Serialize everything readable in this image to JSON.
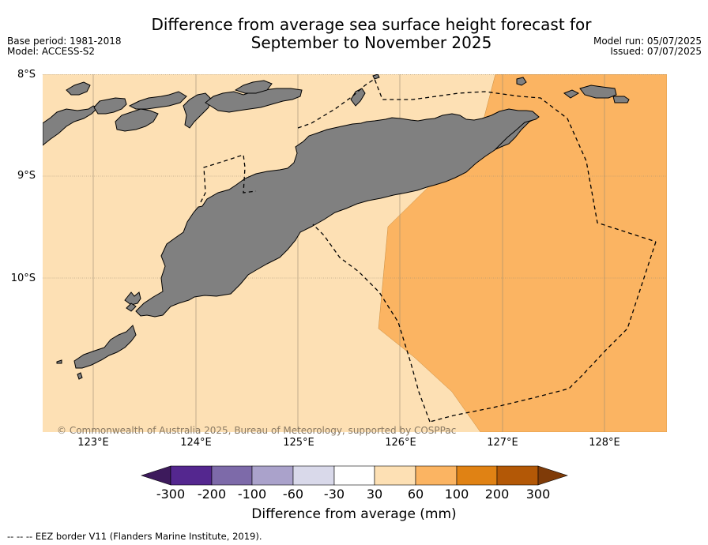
{
  "title": {
    "line1": "Difference from average sea surface height forecast for",
    "line2": "September to November 2025"
  },
  "meta": {
    "base_period": "Base period: 1981-2018",
    "model": "Model: ACCESS-S2",
    "model_run": "Model run: 05/07/2025",
    "issued": "Issued: 07/07/2025"
  },
  "axes": {
    "lat_labels": [
      "8°S",
      "9°S",
      "10°S"
    ],
    "lon_labels": [
      "123°E",
      "124°E",
      "125°E",
      "126°E",
      "127°E",
      "128°E"
    ]
  },
  "copyright": "© Commonwealth of Australia 2025, Bureau of Meteorology, supported by COSPPac",
  "colorbar": {
    "title": "Difference from average (mm)",
    "tick_labels": [
      "-300",
      "-200",
      "-100",
      "-60",
      "-30",
      "30",
      "60",
      "100",
      "200",
      "300"
    ],
    "colors": [
      "#3d1a5c",
      "#54278f",
      "#7d6aa9",
      "#aaa2cb",
      "#d9d9ea",
      "#ffffff",
      "#fde0b4",
      "#fbb462",
      "#e08214",
      "#b35806",
      "#7f3b08"
    ]
  },
  "map_colors": {
    "band_30_60": "#fde0b4",
    "band_60_100": "#fbb462",
    "land": "#808080"
  },
  "footnote": "--  --  -- EEZ border V11 (Flanders Marine Institute, 2019)."
}
